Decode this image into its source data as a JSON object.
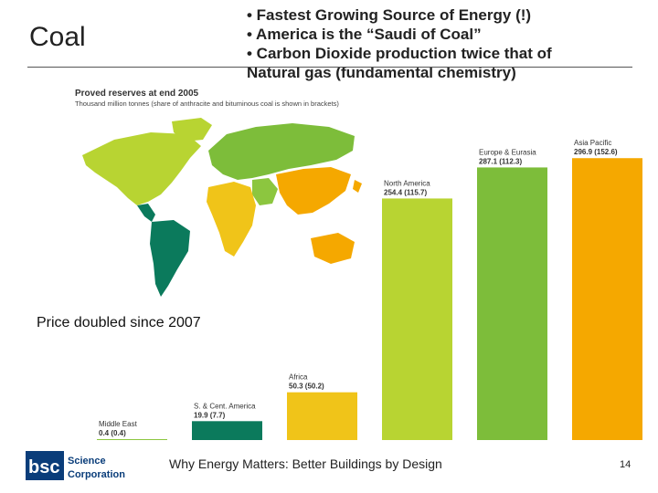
{
  "slide": {
    "title": "Coal",
    "bullets": [
      "• Fastest Growing Source of Energy (!)",
      "• America is the “Saudi of Coal”",
      "• Carbon Dioxide production twice that of",
      "Natural gas (fundamental chemistry)"
    ],
    "price_note": "Price doubled since 2007",
    "footer": "Why Energy Matters: Better Buildings by Design",
    "page_number": "14",
    "logo": {
      "mark": "bsc",
      "line1": "Science",
      "line2": "Corporation"
    }
  },
  "colors": {
    "middle_east": "#8cc63f",
    "s_cent_america": "#0b7a5c",
    "africa": "#f0c419",
    "north_america": "#b8d432",
    "europe_eurasia": "#7dbd3a",
    "asia_pacific": "#f5a800"
  },
  "chart_data": {
    "type": "bar",
    "title": "Proved reserves at end 2005",
    "subtitle": "Thousand million tonnes (share of anthracite and bituminous coal is shown in brackets)",
    "categories": [
      "Middle East",
      "S. & Cent. America",
      "Africa",
      "North America",
      "Europe & Eurasia",
      "Asia Pacific"
    ],
    "values": [
      0.4,
      19.9,
      50.3,
      254.4,
      287.1,
      296.9
    ],
    "bracket_values": [
      0.4,
      7.7,
      50.2,
      115.7,
      112.3,
      152.6
    ],
    "value_labels": [
      "0.4 (0.4)",
      "19.9 (7.7)",
      "50.3 (50.2)",
      "254.4 (115.7)",
      "287.1 (112.3)",
      "296.9 (152.6)"
    ],
    "ylim": [
      0,
      300
    ],
    "grid": false,
    "legend": "none"
  }
}
